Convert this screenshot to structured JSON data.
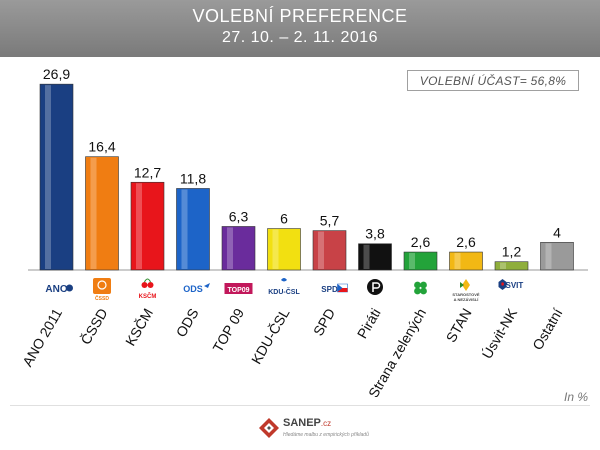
{
  "header": {
    "title": "VOLEBNÍ PREFERENCE",
    "subtitle": "27. 10. – 2. 11. 2016"
  },
  "turnout_label": "VOLEBNÍ ÚČAST= 56,8%",
  "unit_label": "In %",
  "brand": {
    "name": "SANEP",
    "suffix": ".cz",
    "tagline": "Hledáme malbu z empirických příkladů"
  },
  "chart_data": {
    "type": "bar",
    "title": "VOLEBNÍ PREFERENCE",
    "subtitle": "27. 10. – 2. 11. 2016",
    "xlabel": "",
    "ylabel": "",
    "ylim": [
      0,
      27.5
    ],
    "grid": false,
    "categories": [
      "ANO 2011",
      "ČSSD",
      "KSČM",
      "ODS",
      "TOP 09",
      "KDU-ČSL",
      "SPD",
      "Piráti",
      "Strana zelených",
      "STAN",
      "Úsvit-NK",
      "Ostatní"
    ],
    "values": [
      26.9,
      16.4,
      12.7,
      11.8,
      6.3,
      6,
      5.7,
      3.8,
      2.6,
      2.6,
      1.2,
      4
    ],
    "value_labels": [
      "26,9",
      "16,4",
      "12,7",
      "11,8",
      "6,3",
      "6",
      "5,7",
      "3,8",
      "2,6",
      "2,6",
      "1,2",
      "4"
    ],
    "colors": [
      "#1a3f82",
      "#f07d12",
      "#e8151b",
      "#1d64c8",
      "#6a2c9c",
      "#f2e011",
      "#c84247",
      "#111111",
      "#23a33a",
      "#f2b814",
      "#8fae3c",
      "#9a9a9a"
    ],
    "logos": [
      {
        "icon": "ano-logo-icon",
        "text": "ANO"
      },
      {
        "icon": "cssd-logo-icon",
        "text": "ČSSD"
      },
      {
        "icon": "kscm-logo-icon",
        "text": "KSČM"
      },
      {
        "icon": "ods-logo-icon",
        "text": "ODS"
      },
      {
        "icon": "top09-logo-icon",
        "text": "TOP09"
      },
      {
        "icon": "kdu-logo-icon",
        "text": "KDU-ČSL"
      },
      {
        "icon": "spd-logo-icon",
        "text": "SPD"
      },
      {
        "icon": "pirati-logo-icon",
        "text": ""
      },
      {
        "icon": "clover-logo-icon",
        "text": ""
      },
      {
        "icon": "stan-logo-icon",
        "text": "STAROSTOVÉ A NEZÁVISLÍ"
      },
      {
        "icon": "usvit-logo-icon",
        "text": "ÚSVIT"
      },
      {
        "icon": "",
        "text": ""
      }
    ]
  }
}
